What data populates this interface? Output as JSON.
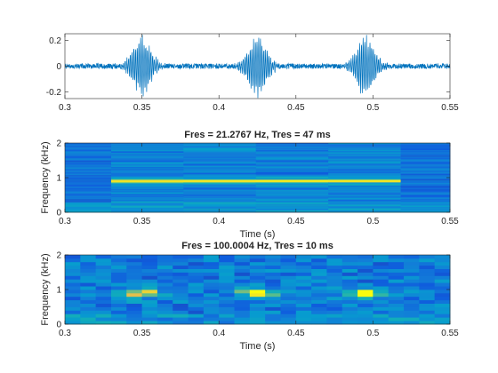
{
  "colors": {
    "waveform": "#0072BD",
    "axes": "#262626",
    "background": "#ffffff",
    "colormap": "parula"
  },
  "chart_data": [
    {
      "type": "line",
      "title": "",
      "xlabel": "",
      "ylabel": "",
      "xlim": [
        0.3,
        0.55
      ],
      "ylim": [
        -0.25,
        0.25
      ],
      "x_ticks": [
        "0.3",
        "0.35",
        "0.4",
        "0.45",
        "0.5",
        "0.55"
      ],
      "y_ticks": [
        "-0.2",
        "0",
        "0.2"
      ],
      "series": [
        {
          "values_description": "",
          "noise_amplitude": 0.02,
          "bursts": [
            {
              "center": 0.35,
              "amplitude": 0.24,
              "width": 0.008
            },
            {
              "center": 0.425,
              "amplitude": 0.24,
              "width": 0.008
            },
            {
              "center": 0.495,
              "amplitude": 0.24,
              "width": 0.008
            }
          ],
          "burst_frequency_hz": 900
        }
      ]
    },
    {
      "type": "heatmap",
      "title": "Fres = 21.2767 Hz, Tres = 47 ms",
      "xlabel": "Time (s)",
      "ylabel": "Frequency (kHz)",
      "xlim": [
        0.3,
        0.55
      ],
      "ylim": [
        0,
        2
      ],
      "x_ticks": [
        "0.3",
        "0.35",
        "0.4",
        "0.45",
        "0.5",
        "0.55"
      ],
      "y_ticks": [
        "0",
        "1",
        "2"
      ],
      "time_resolution_s": 0.047,
      "frequency_resolution_hz": 21.2767,
      "tone_frequency_khz": 0.9
    },
    {
      "type": "heatmap",
      "title": "Fres = 100.0004 Hz, Tres = 10 ms",
      "xlabel": "Time (s)",
      "ylabel": "Frequency (kHz)",
      "xlim": [
        0.3,
        0.55
      ],
      "ylim": [
        0,
        2
      ],
      "x_ticks": [
        "0.3",
        "0.35",
        "0.4",
        "0.45",
        "0.5",
        "0.55"
      ],
      "y_ticks": [
        "0",
        "1",
        "2"
      ],
      "time_resolution_s": 0.01,
      "frequency_resolution_hz": 100.0004,
      "tone_frequency_khz": 0.9,
      "bursts_s": [
        0.35,
        0.425,
        0.495
      ]
    }
  ]
}
